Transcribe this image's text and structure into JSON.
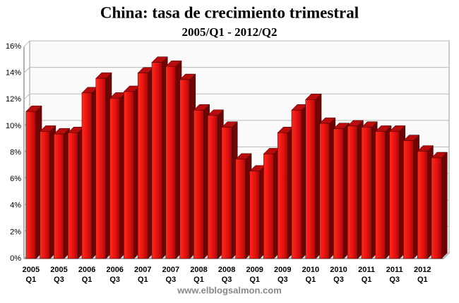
{
  "chart_data": {
    "type": "bar3d",
    "title": "China: tasa de crecimiento trimestral",
    "subtitle": "2005/Q1 - 2012/Q2",
    "source": "www.elblogsalmon.com",
    "categories": [
      "2005 Q1",
      null,
      "2005 Q3",
      null,
      "2006 Q1",
      null,
      "2006 Q3",
      null,
      "2007 Q1",
      null,
      "2007 Q3",
      null,
      "2008 Q1",
      null,
      "2008 Q3",
      null,
      "2009 Q1",
      null,
      "2009 Q3",
      null,
      "2010 Q1",
      null,
      "2010 Q3",
      null,
      "2011 Q1",
      null,
      "2011 Q3",
      null,
      "2012 Q1",
      null
    ],
    "values": [
      11.1,
      9.6,
      9.4,
      9.5,
      12.5,
      13.6,
      12.1,
      12.6,
      14.0,
      14.8,
      14.5,
      13.5,
      11.2,
      10.8,
      9.9,
      7.5,
      6.6,
      7.9,
      9.5,
      11.2,
      12.0,
      10.2,
      9.8,
      10.0,
      9.9,
      9.6,
      9.6,
      8.9,
      8.1,
      7.6
    ],
    "color": "#e01010",
    "ylim": [
      0,
      16
    ],
    "yticks": [
      {
        "value": 0,
        "label": "0%"
      },
      {
        "value": 2,
        "label": "2%"
      },
      {
        "value": 4,
        "label": "4%"
      },
      {
        "value": 6,
        "label": "6%"
      },
      {
        "value": 8,
        "label": "8%"
      },
      {
        "value": 10,
        "label": "10%"
      },
      {
        "value": 12,
        "label": "12%"
      },
      {
        "value": 14,
        "label": "14%"
      },
      {
        "value": 16,
        "label": "16%"
      }
    ],
    "grid": true
  }
}
